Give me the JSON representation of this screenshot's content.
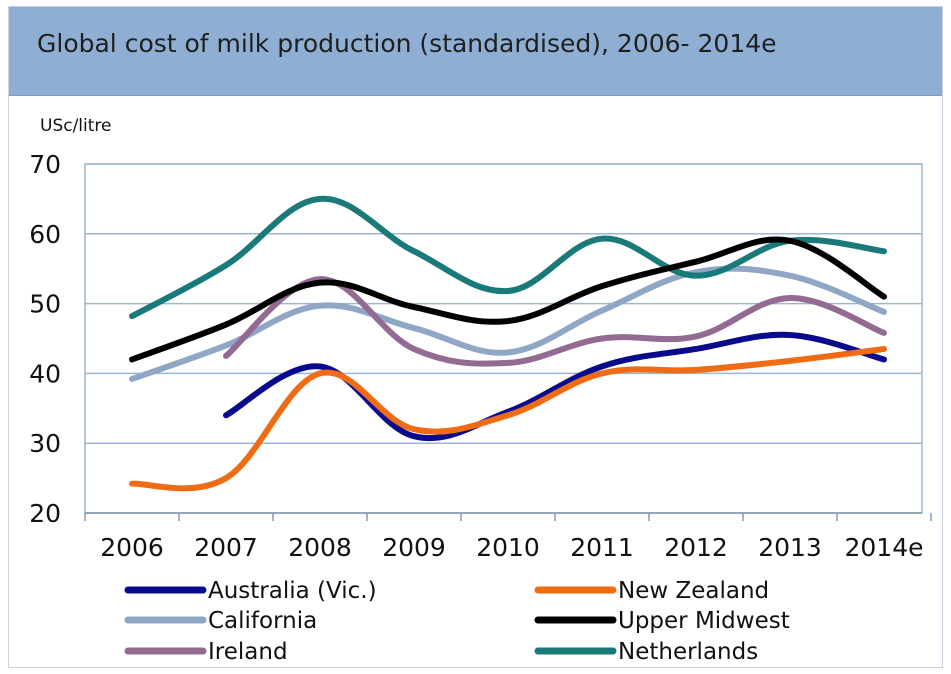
{
  "chart_data": {
    "type": "line",
    "title": "Global cost of milk production (standardised), 2006- 2014e",
    "ylabel": "USc/litre",
    "xlabel": "",
    "categories": [
      "2006",
      "2007",
      "2008",
      "2009",
      "2010",
      "2011",
      "2012",
      "2013",
      "2014e"
    ],
    "ylim": [
      20,
      70
    ],
    "yticks": [
      20,
      30,
      40,
      50,
      60,
      70
    ],
    "grid": true,
    "legend_position": "bottom",
    "series": [
      {
        "name": "Australia (Vic.)",
        "color": "#0a0a8c",
        "values": [
          null,
          34,
          41,
          31,
          34.5,
          41,
          43.5,
          45.5,
          42
        ]
      },
      {
        "name": "New Zealand",
        "color": "#ef6c14",
        "values": [
          24.2,
          25,
          40,
          32,
          34,
          40,
          40.5,
          41.8,
          43.5
        ]
      },
      {
        "name": "California",
        "color": "#8fa7c5",
        "values": [
          39.2,
          44,
          49.7,
          46.5,
          43,
          49,
          54.5,
          54,
          48.8
        ]
      },
      {
        "name": "Upper Midwest",
        "color": "#000000",
        "values": [
          42,
          47,
          53,
          49.5,
          47.5,
          52.5,
          56,
          59,
          51
        ]
      },
      {
        "name": "Ireland",
        "color": "#936a91",
        "values": [
          null,
          42.5,
          53.5,
          43.5,
          41.5,
          45,
          45.3,
          50.8,
          45.8
        ]
      },
      {
        "name": "Netherlands",
        "color": "#1a7a7a",
        "values": [
          48.2,
          55.5,
          65,
          57.5,
          51.8,
          59.3,
          54,
          59,
          57.5
        ]
      }
    ]
  }
}
